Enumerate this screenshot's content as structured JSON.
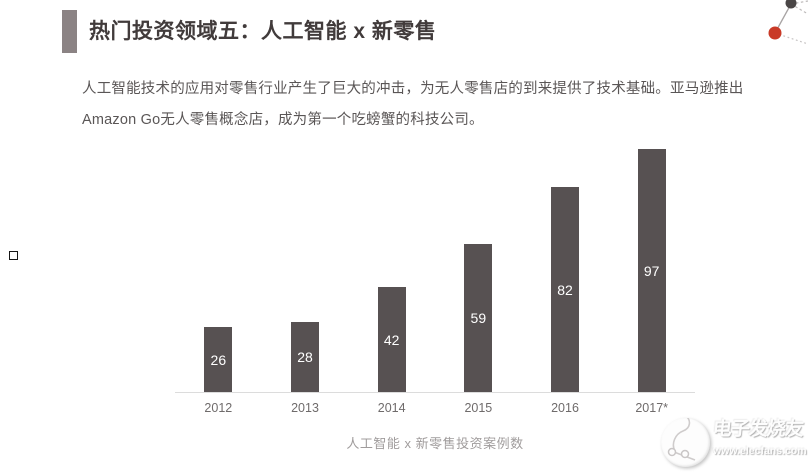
{
  "page": {
    "title": "热门投资领域五：人工智能 x 新零售",
    "paragraph": "人工智能技术的应用对零售行业产生了巨大的冲击，为无人零售店的到来提供了技术基础。亚马逊推出Amazon Go无人零售概念店，成为第一个吃螃蟹的科技公司。"
  },
  "colors": {
    "accent_bar": "#8b8384",
    "title_text": "#413b3b",
    "body_text": "#5a5656",
    "bar_fill": "#575152",
    "bar_label": "#ffffff",
    "axis_line": "#dcdcdc",
    "tick_text": "#6f6b6b",
    "caption_text": "#a09c9c",
    "network_node_dark": "#4a4646",
    "network_node_red": "#c93a27"
  },
  "chart_data": {
    "type": "bar",
    "categories": [
      "2012",
      "2013",
      "2014",
      "2015",
      "2016",
      "2017*"
    ],
    "values": [
      26,
      28,
      42,
      59,
      82,
      97
    ],
    "title": "",
    "caption": "人工智能 x 新零售投资案例数",
    "xlabel": "",
    "ylabel": "",
    "ylim": [
      0,
      100
    ],
    "grid": false,
    "legend": "none",
    "bar_labels_inside": true
  },
  "watermark": {
    "brand": "电子发烧友",
    "url": "www.elecfans.com"
  }
}
